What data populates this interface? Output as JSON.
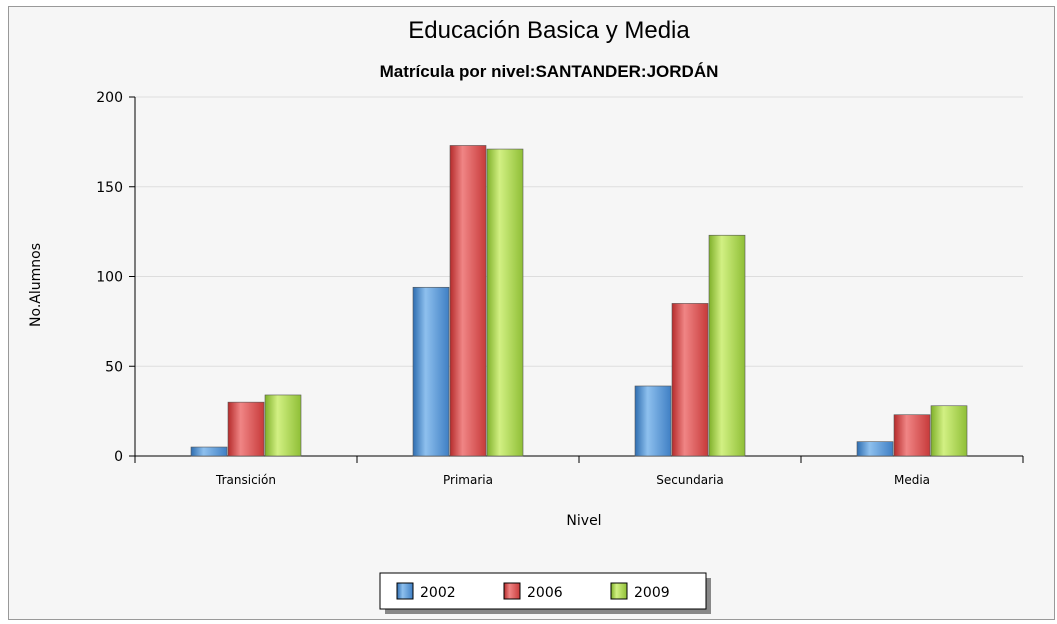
{
  "chart_data": {
    "type": "bar",
    "title": "Educación Basica y Media",
    "subtitle": "Matrícula por nivel:SANTANDER:JORDÁN",
    "xlabel": "Nivel",
    "ylabel": "No.Alumnos",
    "categories": [
      "Transición",
      "Primaria",
      "Secundaria",
      "Media"
    ],
    "series": [
      {
        "name": "2002",
        "values": [
          5,
          94,
          39,
          8
        ],
        "color": "#5b9bd5"
      },
      {
        "name": "2006",
        "values": [
          30,
          173,
          85,
          23
        ],
        "color": "#e05555"
      },
      {
        "name": "2009",
        "values": [
          34,
          171,
          123,
          28
        ],
        "color": "#a8d64f"
      }
    ],
    "ylim": [
      0,
      200
    ],
    "yticks": [
      "0",
      "50",
      "100",
      "150",
      "200"
    ],
    "grid": true,
    "legend_position": "bottom"
  }
}
